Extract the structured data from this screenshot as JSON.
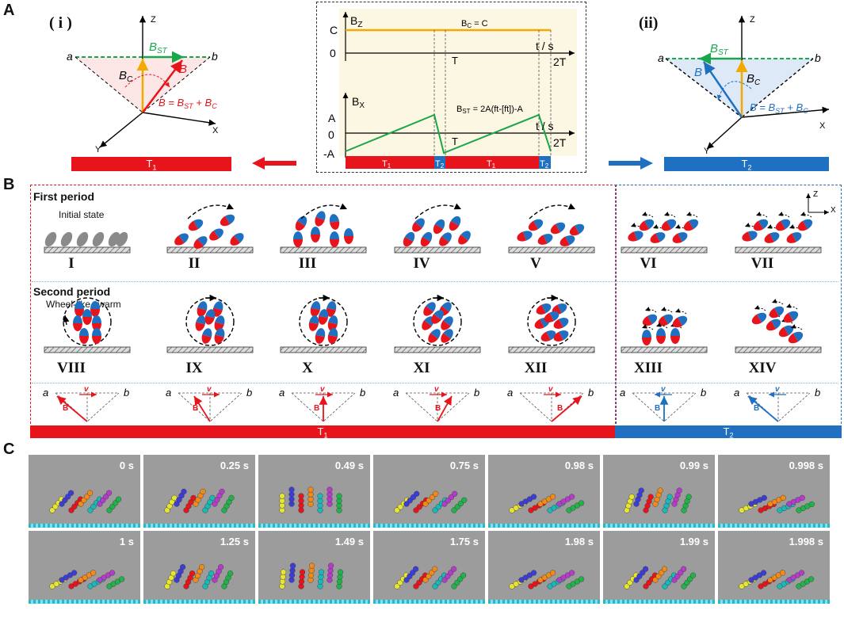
{
  "panels": {
    "A": "A",
    "B": "B",
    "C": "C"
  },
  "panel_a": {
    "left": {
      "label": "( i )",
      "z": "Z",
      "x": "X",
      "y": "Y",
      "a": "a",
      "b": "b",
      "bst": "B",
      "bst_sub": "ST",
      "bc": "B",
      "bc_sub": "C",
      "bvec": "B",
      "eq": "B = B",
      "eq_mid": " + B",
      "eq_sub1": "ST",
      "eq_sub2": "C",
      "bar": "T",
      "bar_sub": "1"
    },
    "right": {
      "label": "(ii)",
      "z": "Z",
      "x": "X",
      "y": "Y",
      "a": "a",
      "b": "b",
      "bst": "B",
      "bst_sub": "ST",
      "bc": "B",
      "bc_sub": "C",
      "bvec": "B",
      "eq": "B = B",
      "eq_mid": " + B",
      "eq_sub1": "ST",
      "eq_sub2": "C",
      "bar": "T",
      "bar_sub": "2"
    },
    "center": {
      "bz_label": "B",
      "bz_sub": "Z",
      "bc_eq": "B",
      "bc_eq_sub": "C",
      "bc_eq_rest": " = C",
      "c": "C",
      "zero": "0",
      "T": "T",
      "twoT": "2T",
      "t_unit": "t / s",
      "bx_label": "B",
      "bx_sub": "X",
      "bst_eq": "B",
      "bst_eq_sub": "ST",
      "bst_eq_rest": " = 2A(ft-[ft])-A",
      "A": "A",
      "negA": "-A",
      "bar_labels": [
        {
          "t": "T",
          "s": "1"
        },
        {
          "t": "T",
          "s": "2"
        },
        {
          "t": "T",
          "s": "1"
        },
        {
          "t": "T",
          "s": "2"
        }
      ]
    }
  },
  "panel_b": {
    "first_period": "First period",
    "second_period": "Second period",
    "initial_state": "Initial state",
    "wheel_swarm": "Wheel-like swarm",
    "axes": {
      "z": "Z",
      "x": "X"
    },
    "row1": [
      "I",
      "II",
      "III",
      "IV",
      "V",
      "VI",
      "VII"
    ],
    "row2": [
      "VIII",
      "IX",
      "X",
      "XI",
      "XII",
      "XIII",
      "XIV"
    ],
    "vec_labels": {
      "a": "a",
      "b": "b",
      "v": "v",
      "B": "B"
    },
    "bar_t1": "T",
    "bar_t1_sub": "1",
    "bar_t2": "T",
    "bar_t2_sub": "2"
  },
  "panel_c": {
    "row1": [
      "0 s",
      "0.25 s",
      "0.49 s",
      "0.75 s",
      "0.98 s",
      "0.99 s",
      "0.998 s"
    ],
    "row2": [
      "1 s",
      "1.25 s",
      "1.49 s",
      "1.75 s",
      "1.98 s",
      "1.99 s",
      "1.998 s"
    ]
  },
  "colors": {
    "red": "#e8141b",
    "blue": "#1f70c1",
    "green": "#1aa64a",
    "orange": "#f2a900"
  }
}
